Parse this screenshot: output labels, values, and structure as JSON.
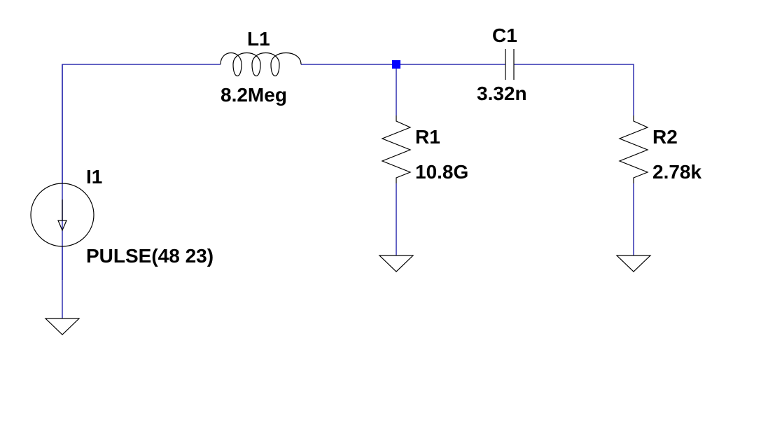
{
  "schematic": {
    "colors": {
      "wire": "#3030b0",
      "symbol": "#000000",
      "junction": "#0000ff",
      "background": "#ffffff"
    },
    "components": {
      "L1": {
        "name": "L1",
        "value": "8.2Meg",
        "kind": "inductor"
      },
      "C1": {
        "name": "C1",
        "value": "3.32n",
        "kind": "capacitor"
      },
      "R1": {
        "name": "R1",
        "value": "10.8G",
        "kind": "resistor"
      },
      "R2": {
        "name": "R2",
        "value": "2.78k",
        "kind": "resistor"
      },
      "I1": {
        "name": "I1",
        "value": "PULSE(48 23)",
        "kind": "current-source"
      }
    }
  }
}
